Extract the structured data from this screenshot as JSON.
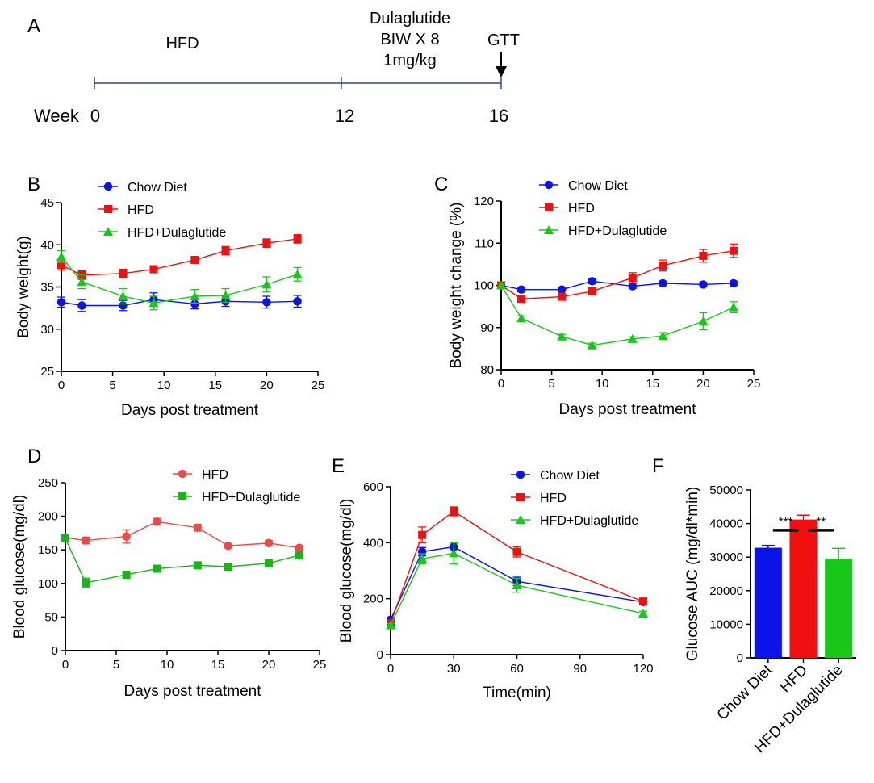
{
  "panel_a": {
    "letter": "A",
    "week_label": "Week",
    "weeks": [
      "0",
      "12",
      "16"
    ],
    "phase_label": "HFD",
    "treatment_lines": [
      "Dulaglutide",
      "BIW X 8",
      "1mg/kg"
    ],
    "gtt_label": "GTT"
  },
  "colors": {
    "chow": "#0a14e8",
    "hfd": "#f01010",
    "hfd_d": "#18c818",
    "hfd_light": "#f04848",
    "hfd_d_green": "#18b418"
  },
  "chart_data": [
    {
      "id": "B",
      "letter": "B",
      "type": "line",
      "xlabel": "Days post treatment",
      "ylabel": "Body weight(g)",
      "xlim": [
        0,
        25
      ],
      "ylim": [
        25,
        45
      ],
      "xticks": [
        "0",
        "5",
        "10",
        "15",
        "20",
        "25"
      ],
      "yticks": [
        "25",
        "30",
        "35",
        "40",
        "45"
      ],
      "x": [
        0,
        2,
        6,
        9,
        13,
        16,
        20,
        23
      ],
      "series": [
        {
          "name": "Chow Diet",
          "marker": "circle",
          "color": "#0a14e8",
          "values": [
            33.2,
            32.8,
            32.8,
            33.5,
            33.0,
            33.3,
            33.2,
            33.3
          ],
          "err": [
            0.6,
            0.7,
            0.6,
            0.8,
            0.6,
            0.6,
            0.7,
            0.7
          ]
        },
        {
          "name": "HFD",
          "marker": "square",
          "color": "#f01010",
          "values": [
            37.6,
            36.4,
            36.6,
            37.1,
            38.2,
            39.3,
            40.2,
            40.7
          ],
          "err": [
            0.6,
            0.5,
            0.5,
            0.4,
            0.4,
            0.5,
            0.5,
            0.5
          ]
        },
        {
          "name": "HFD+Dulaglutide",
          "marker": "triangle",
          "color": "#18c818",
          "values": [
            38.6,
            35.6,
            33.9,
            33.1,
            33.9,
            34.0,
            35.3,
            36.5
          ],
          "err": [
            0.7,
            0.8,
            0.9,
            0.8,
            0.8,
            0.8,
            0.9,
            0.8
          ]
        }
      ]
    },
    {
      "id": "C",
      "letter": "C",
      "type": "line",
      "xlabel": "Days post treatment",
      "ylabel": "Body weight change (%)",
      "xlim": [
        0,
        25
      ],
      "ylim": [
        80,
        120
      ],
      "xticks": [
        "0",
        "5",
        "10",
        "15",
        "20",
        "25"
      ],
      "yticks": [
        "80",
        "90",
        "100",
        "110",
        "120"
      ],
      "x": [
        0,
        2,
        6,
        9,
        13,
        16,
        20,
        23
      ],
      "series": [
        {
          "name": "Chow Diet",
          "marker": "circle",
          "color": "#0a14e8",
          "values": [
            100.0,
            99.0,
            99.0,
            101.0,
            99.8,
            100.5,
            100.2,
            100.5
          ],
          "err": [
            0.5,
            0.5,
            0.4,
            0.6,
            0.5,
            0.5,
            0.5,
            0.5
          ]
        },
        {
          "name": "HFD",
          "marker": "square",
          "color": "#f01010",
          "values": [
            100.0,
            96.8,
            97.3,
            98.6,
            101.8,
            104.7,
            107.0,
            108.2
          ],
          "err": [
            0.5,
            0.5,
            0.6,
            0.7,
            1.2,
            1.3,
            1.5,
            1.6
          ]
        },
        {
          "name": "HFD+Dulaglutide",
          "marker": "triangle",
          "color": "#18c818",
          "values": [
            100.0,
            92.2,
            87.9,
            85.8,
            87.3,
            88.0,
            91.5,
            94.8
          ],
          "err": [
            0.5,
            0.6,
            0.5,
            0.5,
            0.5,
            0.8,
            2.0,
            1.3
          ]
        }
      ]
    },
    {
      "id": "D",
      "letter": "D",
      "type": "line",
      "xlabel": "Days post treatment",
      "ylabel": "Blood glucose(mg/dl)",
      "xlim": [
        0,
        25
      ],
      "ylim": [
        0,
        250
      ],
      "xticks": [
        "0",
        "5",
        "10",
        "15",
        "20",
        "25"
      ],
      "yticks": [
        "0",
        "50",
        "100",
        "150",
        "200",
        "250"
      ],
      "x": [
        0,
        2,
        6,
        9,
        13,
        16,
        20,
        23
      ],
      "series": [
        {
          "name": "HFD",
          "marker": "circle",
          "color": "#f04848",
          "values": [
            168,
            164,
            170,
            192,
            183,
            156,
            160,
            153
          ],
          "err": [
            4,
            5,
            10,
            5,
            5,
            3,
            4,
            3
          ]
        },
        {
          "name": "HFD+Dulaglutide",
          "marker": "square",
          "color": "#18b418",
          "values": [
            167,
            101,
            113,
            122,
            127,
            125,
            130,
            142
          ],
          "err": [
            4,
            7,
            4,
            5,
            4,
            3,
            4,
            5
          ]
        }
      ]
    },
    {
      "id": "E",
      "letter": "E",
      "type": "line",
      "xlabel": "Time(min)",
      "ylabel": "Blood glucose(mg/dl)",
      "xlim": [
        0,
        120
      ],
      "ylim": [
        0,
        600
      ],
      "xticks": [
        "0",
        "30",
        "60",
        "90",
        "120"
      ],
      "yticks": [
        "0",
        "200",
        "400",
        "600"
      ],
      "x": [
        0,
        15,
        30,
        60,
        120
      ],
      "series": [
        {
          "name": "Chow Diet",
          "marker": "circle",
          "color": "#0a14e8",
          "values": [
            125,
            368,
            385,
            262,
            188
          ],
          "err": [
            6,
            15,
            14,
            15,
            8
          ]
        },
        {
          "name": "HFD",
          "marker": "square",
          "color": "#f01010",
          "values": [
            112,
            428,
            512,
            367,
            190
          ],
          "err": [
            6,
            28,
            16,
            18,
            6
          ]
        },
        {
          "name": "HFD+Dulaglutide",
          "marker": "triangle",
          "color": "#18c818",
          "values": [
            105,
            343,
            362,
            248,
            147
          ],
          "err": [
            6,
            18,
            38,
            25,
            8
          ]
        }
      ]
    },
    {
      "id": "F",
      "letter": "F",
      "type": "bar",
      "ylabel": "Glucose AUC (mg/dl*min)",
      "ylim": [
        0,
        50000
      ],
      "yticks": [
        "0",
        "10000",
        "20000",
        "30000",
        "40000",
        "50000"
      ],
      "categories": [
        "Chow Diet",
        "HFD",
        "HFD+Dulaglutide"
      ],
      "values": [
        32800,
        41200,
        29600
      ],
      "err": [
        700,
        1300,
        3000
      ],
      "colors": [
        "#0a14e8",
        "#f01010",
        "#18c818"
      ],
      "significance": [
        "***",
        "**"
      ]
    }
  ]
}
